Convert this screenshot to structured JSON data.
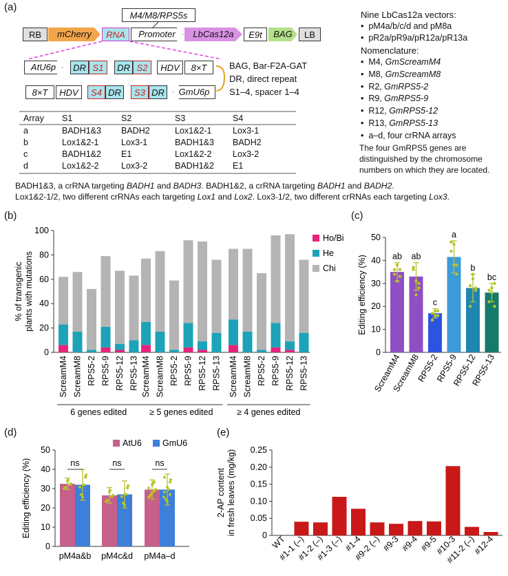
{
  "panel_labels": {
    "a": "(a)",
    "b": "(b)",
    "c": "(c)",
    "d": "(d)",
    "e": "(e)"
  },
  "construct": {
    "top_label": "M4/M8/RPS5s",
    "elements": [
      "RB",
      "mCherry",
      "RNA",
      "Promoter",
      "LbCas12a",
      "E9t",
      "BAG",
      "LB"
    ],
    "array1": [
      "AtU6p",
      "DR",
      "S1",
      "DR",
      "S2",
      "HDV",
      "8×T"
    ],
    "array2": [
      "8×T",
      "HDV",
      "S4",
      "DR",
      "S3",
      "DR",
      "GmU6p"
    ],
    "defs": [
      "BAG, Bar-F2A-GAT",
      "DR, direct repeat",
      "S1–4, spacer 1–4"
    ]
  },
  "vectors_note": {
    "title": "Nine LbCas12a vectors:",
    "lines": [
      "pM4a/b/c/d and pM8a",
      "pR2a/pR9a/pR12a/pR13a"
    ],
    "nomen_title": "Nomenclature:",
    "nomen": [
      {
        "abbr": "M4,",
        "gene": "GmScreamM4"
      },
      {
        "abbr": "M8,",
        "gene": "GmScreamM8"
      },
      {
        "abbr": "R2,",
        "gene": "GmRPS5-2"
      },
      {
        "abbr": "R9,",
        "gene": "GmRPS5-9"
      },
      {
        "abbr": "R12,",
        "gene": "GmRPS5-12"
      },
      {
        "abbr": "R13,",
        "gene": "GmRPS5-13"
      }
    ],
    "last_bullet": "a–d, four crRNA arrays",
    "foot": [
      "The four GmRPS5 genes are",
      "distinguished by the chromosome",
      "numbers on which they are located."
    ]
  },
  "array_table": {
    "headers": [
      "Array",
      "S1",
      "S2",
      "S3",
      "S4"
    ],
    "rows": [
      [
        "a",
        "BADH1&3",
        "BADH2",
        "Lox1&2-1",
        "Lox3-1"
      ],
      [
        "b",
        "Lox1&2-1",
        "Lox3-1",
        "BADH1&3",
        "BADH2"
      ],
      [
        "c",
        "BADH1&2",
        "E1",
        "Lox1&2-2",
        "Lox3-2"
      ],
      [
        "d",
        "Lox1&2-2",
        "Lox3-2",
        "BADH1&2",
        "E1"
      ]
    ]
  },
  "caption": {
    "line1": [
      {
        "t": "BADH1&3, a crRNA targeting ",
        "i": false
      },
      {
        "t": "BADH1",
        "i": true
      },
      {
        "t": " and ",
        "i": false
      },
      {
        "t": "BADH3",
        "i": true
      },
      {
        "t": ". BADH1&2, a crRNA targeting ",
        "i": false
      },
      {
        "t": "BADH1",
        "i": true
      },
      {
        "t": " and ",
        "i": false
      },
      {
        "t": "BADH2",
        "i": true
      },
      {
        "t": ".",
        "i": false
      }
    ],
    "line2": [
      {
        "t": "Lox1&2-1/2, two different crRNAs each targeting ",
        "i": false
      },
      {
        "t": "Lox1",
        "i": true
      },
      {
        "t": " and ",
        "i": false
      },
      {
        "t": "Lox2",
        "i": true
      },
      {
        "t": ". Lox3-1/2, two different crRNAs each targeting ",
        "i": false
      },
      {
        "t": "Lox3",
        "i": true
      },
      {
        "t": ".",
        "i": false
      }
    ]
  },
  "colors": {
    "hobi": "#e8237a",
    "he": "#1ca3b8",
    "chi": "#b4b4b4",
    "atu6": "#c65f8a",
    "gmu6": "#3d7fd9",
    "red": "#c81818",
    "dot": "#b8c428"
  },
  "chart_data": [
    {
      "id": "b",
      "type": "bar",
      "stacked": true,
      "ylabel": "% of transgenic plants with mutations",
      "ylim": [
        0,
        100
      ],
      "yticks": [
        0,
        20,
        40,
        60,
        80,
        100
      ],
      "categories": [
        "ScreamM4",
        "ScreamM8",
        "RPS5-2",
        "RPS5-9",
        "RPS5-12",
        "RPS5-13"
      ],
      "groups": [
        "6 genes edited",
        "≥ 5 genes edited",
        "≥ 4 genes edited"
      ],
      "legend": [
        "Ho/Bi",
        "He",
        "Chi"
      ],
      "series": [
        {
          "name": "Ho/Bi",
          "groups": [
            [
              6,
              0,
              0,
              4,
              2,
              0
            ],
            [
              6,
              0,
              0,
              4,
              2,
              0
            ],
            [
              6,
              0,
              0,
              4,
              2,
              0
            ]
          ]
        },
        {
          "name": "He",
          "groups": [
            [
              17,
              17,
              2,
              17,
              5,
              10
            ],
            [
              19,
              17,
              2,
              20,
              7,
              16
            ],
            [
              21,
              17,
              2,
              20,
              7,
              16
            ]
          ]
        },
        {
          "name": "Chi",
          "groups": [
            [
              39,
              49,
              50,
              58,
              60,
              53
            ],
            [
              52,
              66,
              57,
              68,
              82,
              60
            ],
            [
              58,
              68,
              63,
              72,
              88,
              60
            ]
          ]
        }
      ],
      "totals": [
        [
          62,
          66,
          52,
          79,
          67,
          63
        ],
        [
          77,
          83,
          59,
          92,
          91,
          76
        ],
        [
          85,
          85,
          65,
          96,
          97,
          76
        ]
      ]
    },
    {
      "id": "c",
      "type": "bar",
      "ylabel": "Editing efficiency (%)",
      "ylim": [
        0,
        50
      ],
      "yticks": [
        0,
        10,
        20,
        30,
        40,
        50
      ],
      "categories": [
        "ScreamM4",
        "ScreamM8",
        "RPS5-2",
        "RPS5-9",
        "RPS5-12",
        "RPS5-13"
      ],
      "values": [
        35,
        33,
        17,
        41.5,
        28,
        26
      ],
      "errors": [
        4,
        6,
        2,
        7,
        6,
        4
      ],
      "letters": [
        "ab",
        "ab",
        "c",
        "a",
        "b",
        "bc"
      ],
      "bar_colors": [
        "#8e4fc4",
        "#8e4fc4",
        "#2b55e0",
        "#3c9bd8",
        "#1f86b0",
        "#137a6c"
      ],
      "points": [
        [
          36,
          31,
          33,
          34,
          38,
          36
        ],
        [
          37,
          31,
          30,
          36,
          25,
          28
        ],
        [
          17,
          16,
          18,
          14,
          18,
          16
        ],
        [
          44,
          38,
          34,
          48,
          47,
          38
        ],
        [
          29,
          32,
          27,
          20,
          34,
          28
        ],
        [
          22,
          28,
          30,
          27,
          26,
          20
        ]
      ]
    },
    {
      "id": "d",
      "type": "bar",
      "ylabel": "Editing efficiency (%)",
      "ylim": [
        0,
        50
      ],
      "yticks": [
        0,
        10,
        20,
        30,
        40,
        50
      ],
      "categories": [
        "pM4a&b",
        "pM4c&d",
        "pM4a–d"
      ],
      "legend": [
        "AtU6",
        "GmU6"
      ],
      "series": [
        {
          "name": "AtU6",
          "values": [
            32.5,
            26.5,
            29.5
          ],
          "errors": [
            3,
            4,
            5
          ]
        },
        {
          "name": "GmU6",
          "values": [
            32,
            27,
            29.5
          ],
          "errors": [
            8,
            7,
            8
          ]
        }
      ],
      "significance": [
        "ns",
        "ns",
        "ns"
      ]
    },
    {
      "id": "e",
      "type": "bar",
      "ylabel": "2-AP content in fresh leaves (mg/kg)",
      "ylim": [
        0,
        0.25
      ],
      "yticks": [
        "0",
        "0.05",
        "0.10",
        "0.15",
        "0.20",
        "0.25"
      ],
      "categories": [
        "WT",
        "#1-1 (–)",
        "#1-2 (–)",
        "#1-3 (–)",
        "#1-4",
        "#9-2 (–)",
        "#9-3",
        "#9-4",
        "#9-5",
        "#10-3",
        "#11-2 (–)",
        "#12-4"
      ],
      "values": [
        0,
        0.04,
        0.038,
        0.113,
        0.078,
        0.038,
        0.034,
        0.042,
        0.041,
        0.203,
        0.025,
        0.01
      ]
    }
  ]
}
